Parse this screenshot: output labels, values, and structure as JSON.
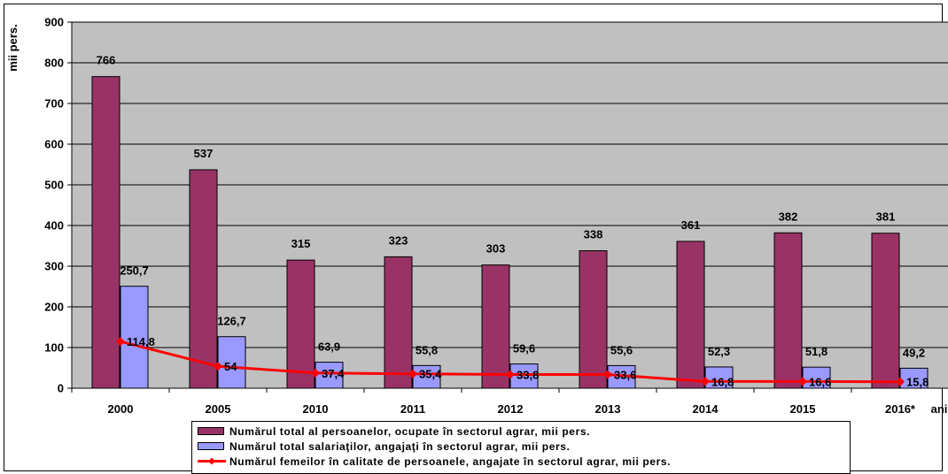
{
  "chart_data": {
    "type": "bar",
    "ylabel": "mii pers.",
    "x_unit_label": "ani",
    "ylim": [
      0,
      900
    ],
    "y_ticks": [
      0,
      100,
      200,
      300,
      400,
      500,
      600,
      700,
      800,
      900
    ],
    "categories": [
      "2000",
      "2005",
      "2010",
      "2011",
      "2012",
      "2013",
      "2014",
      "2015",
      "2016*"
    ],
    "series": [
      {
        "name": "Numărul total al persoanelor, ocupate în sectorul agrar, mii pers.",
        "type": "bar",
        "color": "#993366",
        "values": [
          766,
          537,
          315,
          323,
          303,
          338,
          361,
          382,
          381
        ],
        "labels": [
          "766",
          "537",
          "315",
          "323",
          "303",
          "338",
          "361",
          "382",
          "381"
        ]
      },
      {
        "name": "Numărul total salariaţilor, angajaţi în sectorul agrar, mii pers.",
        "type": "bar",
        "color": "#9999FF",
        "values": [
          250.7,
          126.7,
          63.9,
          55.8,
          59.6,
          55.6,
          52.3,
          51.8,
          49.2
        ],
        "labels": [
          "250,7",
          "126,7",
          "63,9",
          "55,8",
          "59,6",
          "55,6",
          "52,3",
          "51,8",
          "49,2"
        ]
      },
      {
        "name": "Numărul femeilor în calitate de persoanele, angajate în sectorul agrar, mii pers.",
        "type": "line",
        "color": "#FF0000",
        "values": [
          114.8,
          54,
          37.4,
          35.4,
          33.8,
          33.6,
          16.8,
          16.6,
          15.8
        ],
        "labels": [
          "114,8",
          "54",
          "37,4",
          "35,4",
          "33,8",
          "33,6",
          "16,8",
          "16,6",
          "15,8"
        ]
      }
    ],
    "grid": true,
    "plot_background": "#C0C0C0",
    "legend_position": "bottom"
  }
}
